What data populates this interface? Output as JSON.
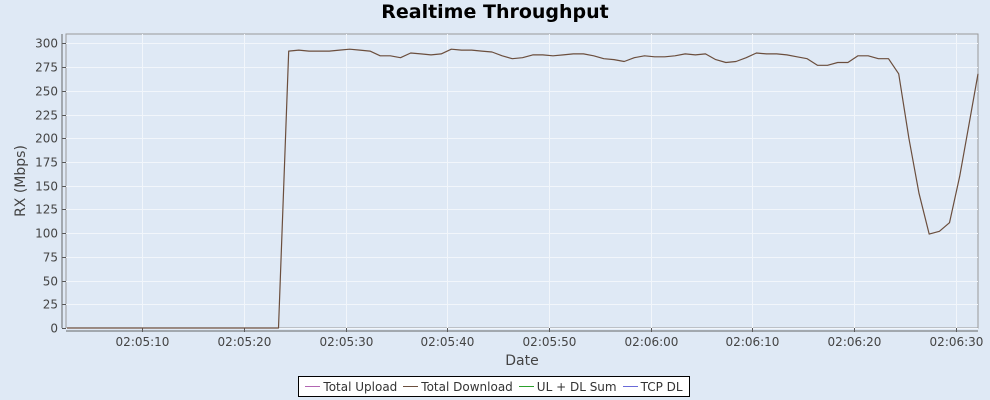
{
  "chart_data": {
    "type": "line",
    "title": "Realtime Throughput",
    "xlabel": "Date",
    "ylabel": "RX (Mbps)",
    "ylim": [
      0,
      310
    ],
    "y_ticks": [
      0,
      25,
      50,
      75,
      100,
      125,
      150,
      175,
      200,
      225,
      250,
      275,
      300
    ],
    "xlim_seconds": [
      2.5,
      92.2
    ],
    "x_ticks": [
      {
        "label": "02:05:10",
        "t": 10
      },
      {
        "label": "02:05:20",
        "t": 20
      },
      {
        "label": "02:05:30",
        "t": 30
      },
      {
        "label": "02:05:40",
        "t": 40
      },
      {
        "label": "02:05:50",
        "t": 50
      },
      {
        "label": "02:06:00",
        "t": 60
      },
      {
        "label": "02:06:10",
        "t": 70
      },
      {
        "label": "02:06:20",
        "t": 80
      },
      {
        "label": "02:06:30",
        "t": 90
      }
    ],
    "grid": true,
    "legend_position": "bottom",
    "series": [
      {
        "name": "Total Upload",
        "color": "#b266b2",
        "points": []
      },
      {
        "name": "Total Download",
        "color": "#6b4e3d",
        "points": [
          [
            2.6,
            0
          ],
          [
            23.4,
            0
          ],
          [
            24.4,
            292
          ],
          [
            25.4,
            293
          ],
          [
            26.4,
            292
          ],
          [
            27.4,
            292
          ],
          [
            28.4,
            292
          ],
          [
            29.4,
            293
          ],
          [
            30.4,
            294
          ],
          [
            31.4,
            293
          ],
          [
            32.4,
            292
          ],
          [
            33.4,
            287
          ],
          [
            34.4,
            287
          ],
          [
            35.4,
            285
          ],
          [
            36.4,
            290
          ],
          [
            37.4,
            289
          ],
          [
            38.4,
            288
          ],
          [
            39.4,
            289
          ],
          [
            40.4,
            294
          ],
          [
            41.4,
            293
          ],
          [
            42.4,
            293
          ],
          [
            43.4,
            292
          ],
          [
            44.4,
            291
          ],
          [
            45.4,
            287
          ],
          [
            46.4,
            284
          ],
          [
            47.4,
            285
          ],
          [
            48.4,
            288
          ],
          [
            49.4,
            288
          ],
          [
            50.4,
            287
          ],
          [
            51.4,
            288
          ],
          [
            52.4,
            289
          ],
          [
            53.4,
            289
          ],
          [
            54.4,
            287
          ],
          [
            55.4,
            284
          ],
          [
            56.4,
            283
          ],
          [
            57.4,
            281
          ],
          [
            58.4,
            285
          ],
          [
            59.4,
            287
          ],
          [
            60.4,
            286
          ],
          [
            61.4,
            286
          ],
          [
            62.4,
            287
          ],
          [
            63.4,
            289
          ],
          [
            64.4,
            288
          ],
          [
            65.4,
            289
          ],
          [
            66.4,
            283
          ],
          [
            67.4,
            280
          ],
          [
            68.4,
            281
          ],
          [
            69.4,
            285
          ],
          [
            70.4,
            290
          ],
          [
            71.4,
            289
          ],
          [
            72.4,
            289
          ],
          [
            73.4,
            288
          ],
          [
            74.4,
            286
          ],
          [
            75.4,
            284
          ],
          [
            76.4,
            277
          ],
          [
            77.4,
            277
          ],
          [
            78.4,
            280
          ],
          [
            79.4,
            280
          ],
          [
            80.4,
            287
          ],
          [
            81.4,
            287
          ],
          [
            82.4,
            284
          ],
          [
            83.4,
            284
          ],
          [
            84.4,
            268
          ],
          [
            85.4,
            200
          ],
          [
            86.4,
            142
          ],
          [
            87.4,
            99
          ],
          [
            88.4,
            102
          ],
          [
            89.4,
            111
          ],
          [
            90.4,
            160
          ],
          [
            91.4,
            220
          ],
          [
            92.2,
            268
          ]
        ]
      },
      {
        "name": "UL + DL Sum",
        "color": "#2ca02c",
        "points": []
      },
      {
        "name": "TCP DL",
        "color": "#6a6ad8",
        "points": []
      }
    ]
  }
}
